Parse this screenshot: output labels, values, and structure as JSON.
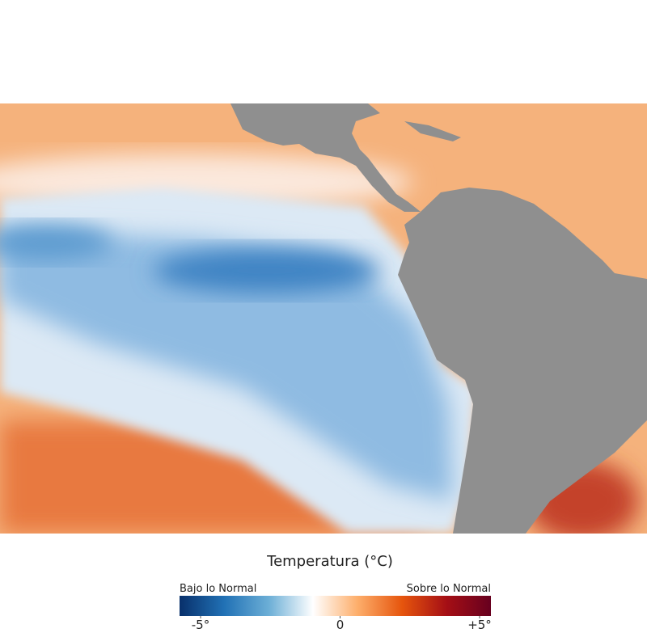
{
  "legend": {
    "title": "Temperatura (°C)",
    "low_label": "Bajo lo Normal",
    "high_label": "Sobre lo Normal",
    "range": [
      -5,
      5
    ],
    "ticks": [
      {
        "value": -5,
        "label": "-5°"
      },
      0,
      {
        "value": 5,
        "label": "+5°"
      }
    ],
    "colors": [
      "#08306b",
      "#2171b5",
      "#6baed6",
      "#ffffff",
      "#fdae6b",
      "#e6550d",
      "#a50f15",
      "#67001f"
    ]
  }
}
